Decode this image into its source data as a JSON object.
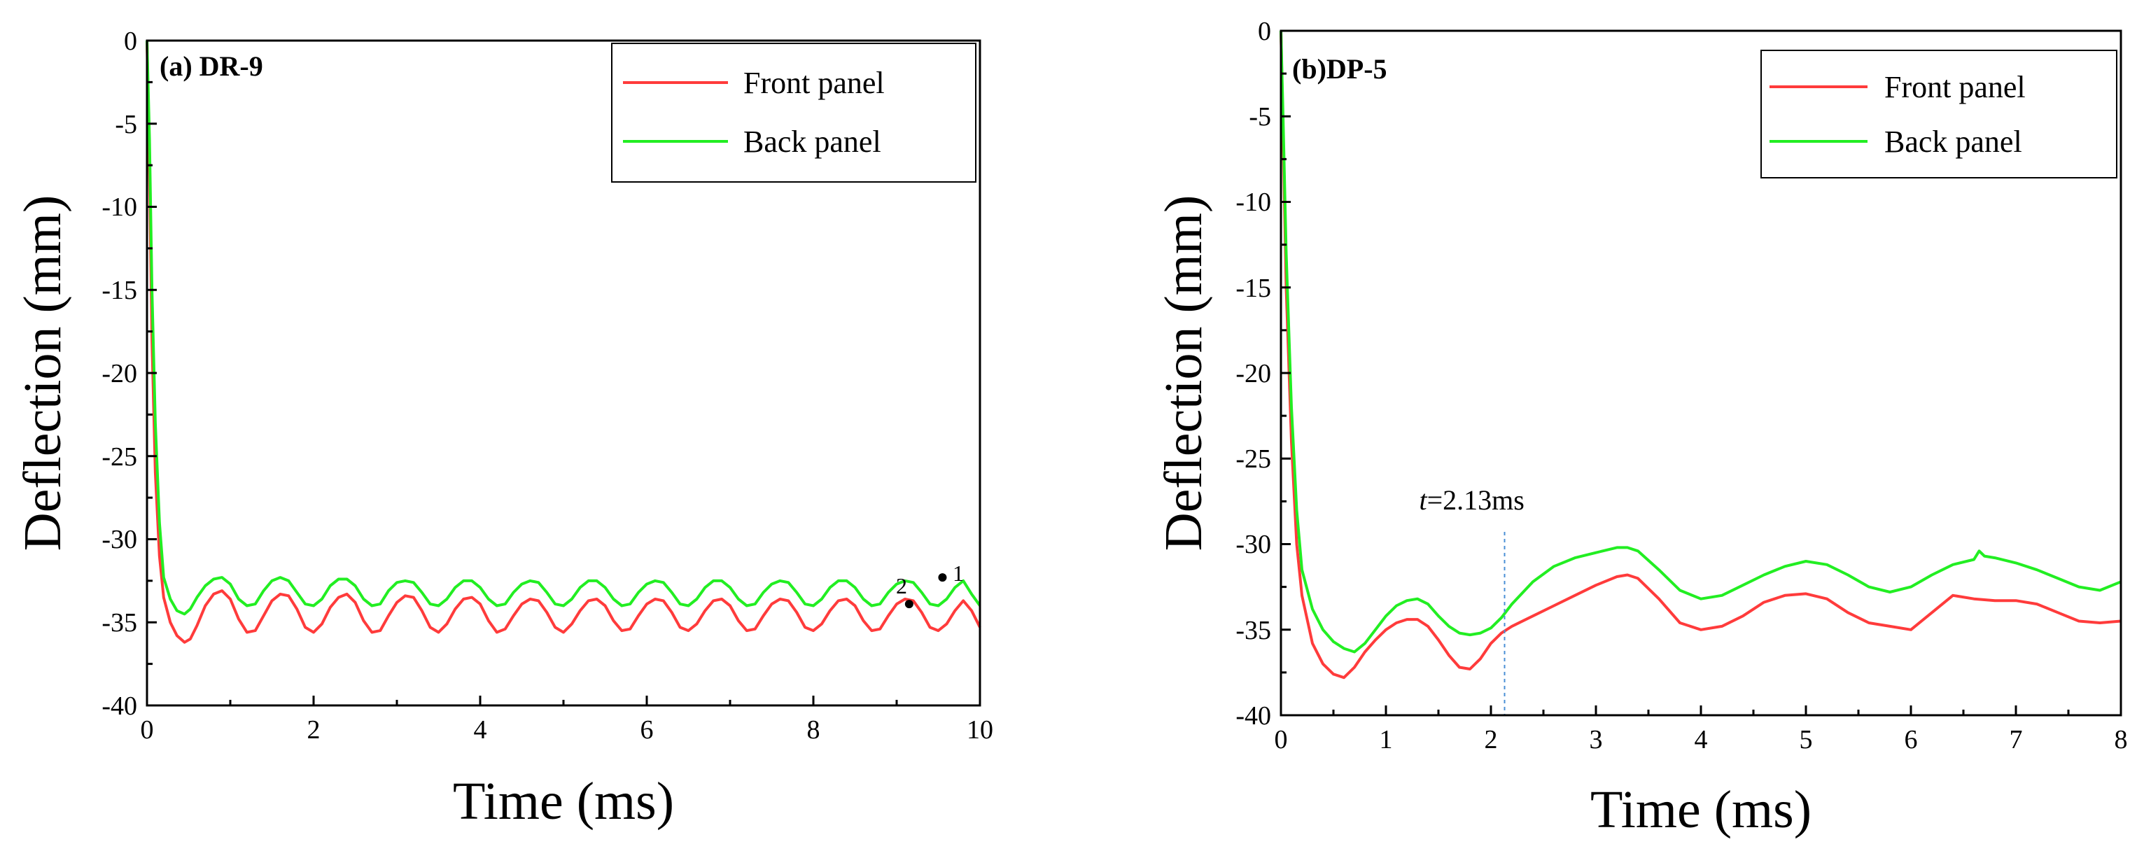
{
  "chart_data": [
    {
      "type": "line",
      "title": "(a) DR-9",
      "xlabel": "Time (ms)",
      "ylabel": "Deflection (mm)",
      "xlim": [
        0,
        10
      ],
      "ylim": [
        -40,
        0
      ],
      "xticks": [
        0,
        2,
        4,
        6,
        8,
        10
      ],
      "yticks": [
        0,
        -5,
        -10,
        -15,
        -20,
        -25,
        -30,
        -35,
        -40
      ],
      "legend_position": "top-right",
      "series": [
        {
          "name": "Front panel",
          "color": "#ff3b3b",
          "x": [
            0,
            0.03,
            0.06,
            0.1,
            0.15,
            0.2,
            0.28,
            0.36,
            0.45,
            0.52,
            0.6,
            0.7,
            0.8,
            0.9,
            1.0,
            1.1,
            1.2,
            1.3,
            1.4,
            1.5,
            1.6,
            1.7,
            1.8,
            1.9,
            2.0,
            2.1,
            2.2,
            2.3,
            2.4,
            2.5,
            2.6,
            2.7,
            2.8,
            2.9,
            3.0,
            3.1,
            3.2,
            3.3,
            3.4,
            3.5,
            3.6,
            3.7,
            3.8,
            3.9,
            4.0,
            4.1,
            4.2,
            4.3,
            4.4,
            4.5,
            4.6,
            4.7,
            4.8,
            4.9,
            5.0,
            5.1,
            5.2,
            5.3,
            5.4,
            5.5,
            5.6,
            5.7,
            5.8,
            5.9,
            6.0,
            6.1,
            6.2,
            6.3,
            6.4,
            6.5,
            6.6,
            6.7,
            6.8,
            6.9,
            7.0,
            7.1,
            7.2,
            7.3,
            7.4,
            7.5,
            7.6,
            7.7,
            7.8,
            7.9,
            8.0,
            8.1,
            8.2,
            8.3,
            8.4,
            8.5,
            8.6,
            8.7,
            8.8,
            8.9,
            9.0,
            9.1,
            9.2,
            9.3,
            9.4,
            9.5,
            9.6,
            9.7,
            9.8,
            9.9,
            10.0
          ],
          "y": [
            0,
            -8,
            -18,
            -26,
            -31,
            -33.5,
            -35,
            -35.8,
            -36.2,
            -36,
            -35.2,
            -34,
            -33.3,
            -33.1,
            -33.6,
            -34.8,
            -35.6,
            -35.5,
            -34.6,
            -33.7,
            -33.3,
            -33.4,
            -34.2,
            -35.3,
            -35.6,
            -35.1,
            -34.1,
            -33.5,
            -33.3,
            -33.8,
            -34.9,
            -35.6,
            -35.5,
            -34.6,
            -33.8,
            -33.4,
            -33.5,
            -34.3,
            -35.3,
            -35.6,
            -35.1,
            -34.2,
            -33.6,
            -33.5,
            -33.9,
            -34.9,
            -35.6,
            -35.4,
            -34.6,
            -33.9,
            -33.6,
            -33.7,
            -34.4,
            -35.3,
            -35.6,
            -35.1,
            -34.3,
            -33.7,
            -33.6,
            -34.0,
            -34.9,
            -35.5,
            -35.4,
            -34.6,
            -33.9,
            -33.6,
            -33.7,
            -34.4,
            -35.3,
            -35.5,
            -35.1,
            -34.3,
            -33.7,
            -33.6,
            -34.0,
            -34.9,
            -35.5,
            -35.4,
            -34.6,
            -33.9,
            -33.6,
            -33.7,
            -34.4,
            -35.3,
            -35.5,
            -35.1,
            -34.3,
            -33.7,
            -33.6,
            -34.0,
            -34.9,
            -35.5,
            -35.4,
            -34.6,
            -33.9,
            -33.6,
            -33.7,
            -34.4,
            -35.3,
            -35.5,
            -35.1,
            -34.3,
            -33.7,
            -34.3,
            -35.3
          ]
        },
        {
          "name": "Back panel",
          "color": "#22ee22",
          "x": [
            0,
            0.03,
            0.06,
            0.1,
            0.15,
            0.2,
            0.28,
            0.36,
            0.45,
            0.52,
            0.6,
            0.7,
            0.8,
            0.9,
            1.0,
            1.1,
            1.2,
            1.3,
            1.4,
            1.5,
            1.6,
            1.7,
            1.8,
            1.9,
            2.0,
            2.1,
            2.2,
            2.3,
            2.4,
            2.5,
            2.6,
            2.7,
            2.8,
            2.9,
            3.0,
            3.1,
            3.2,
            3.3,
            3.4,
            3.5,
            3.6,
            3.7,
            3.8,
            3.9,
            4.0,
            4.1,
            4.2,
            4.3,
            4.4,
            4.5,
            4.6,
            4.7,
            4.8,
            4.9,
            5.0,
            5.1,
            5.2,
            5.3,
            5.4,
            5.5,
            5.6,
            5.7,
            5.8,
            5.9,
            6.0,
            6.1,
            6.2,
            6.3,
            6.4,
            6.5,
            6.6,
            6.7,
            6.8,
            6.9,
            7.0,
            7.1,
            7.2,
            7.3,
            7.4,
            7.5,
            7.6,
            7.7,
            7.8,
            7.9,
            8.0,
            8.1,
            8.2,
            8.3,
            8.4,
            8.5,
            8.6,
            8.7,
            8.8,
            8.9,
            9.0,
            9.1,
            9.2,
            9.3,
            9.4,
            9.5,
            9.6,
            9.7,
            9.8,
            9.9,
            10.0
          ],
          "y": [
            0,
            -6,
            -15,
            -23,
            -29,
            -32.3,
            -33.6,
            -34.3,
            -34.5,
            -34.2,
            -33.5,
            -32.8,
            -32.4,
            -32.3,
            -32.7,
            -33.6,
            -34.0,
            -33.9,
            -33.1,
            -32.5,
            -32.3,
            -32.5,
            -33.2,
            -33.9,
            -34.0,
            -33.6,
            -32.8,
            -32.4,
            -32.4,
            -32.8,
            -33.6,
            -34.0,
            -33.9,
            -33.1,
            -32.6,
            -32.5,
            -32.6,
            -33.2,
            -33.9,
            -34.0,
            -33.6,
            -32.9,
            -32.5,
            -32.5,
            -32.9,
            -33.6,
            -34.0,
            -33.9,
            -33.2,
            -32.7,
            -32.5,
            -32.6,
            -33.2,
            -33.9,
            -34.0,
            -33.6,
            -32.9,
            -32.5,
            -32.5,
            -32.9,
            -33.6,
            -34.0,
            -33.9,
            -33.2,
            -32.7,
            -32.5,
            -32.6,
            -33.2,
            -33.9,
            -34.0,
            -33.6,
            -32.9,
            -32.5,
            -32.5,
            -32.9,
            -33.6,
            -34.0,
            -33.9,
            -33.2,
            -32.7,
            -32.5,
            -32.6,
            -33.2,
            -33.9,
            -34.0,
            -33.6,
            -32.9,
            -32.5,
            -32.5,
            -32.9,
            -33.6,
            -34.0,
            -33.9,
            -33.2,
            -32.7,
            -32.5,
            -32.6,
            -33.2,
            -33.9,
            -34.0,
            -33.6,
            -32.9,
            -32.5,
            -33.3,
            -34.0
          ]
        }
      ],
      "annotations": [
        {
          "label": "1",
          "x": 9.55,
          "y": -32.3
        },
        {
          "label": "2",
          "x": 9.15,
          "y": -33.9
        }
      ]
    },
    {
      "type": "line",
      "title": "(b)DP-5",
      "xlabel": "Time (ms)",
      "ylabel": "Deflection (mm)",
      "xlim": [
        0,
        8
      ],
      "ylim": [
        -40,
        0
      ],
      "xticks": [
        0,
        1,
        2,
        3,
        4,
        5,
        6,
        7,
        8
      ],
      "yticks": [
        0,
        -5,
        -10,
        -15,
        -20,
        -25,
        -30,
        -35,
        -40
      ],
      "legend_position": "top-right",
      "series": [
        {
          "name": "Front panel",
          "color": "#ff3b3b",
          "x": [
            0,
            0.02,
            0.05,
            0.1,
            0.15,
            0.2,
            0.3,
            0.4,
            0.5,
            0.6,
            0.7,
            0.8,
            0.9,
            1.0,
            1.1,
            1.2,
            1.3,
            1.4,
            1.5,
            1.6,
            1.7,
            1.8,
            1.9,
            2.0,
            2.1,
            2.2,
            2.4,
            2.6,
            2.8,
            3.0,
            3.2,
            3.3,
            3.4,
            3.6,
            3.8,
            4.0,
            4.2,
            4.4,
            4.6,
            4.8,
            5.0,
            5.2,
            5.4,
            5.6,
            5.8,
            6.0,
            6.2,
            6.4,
            6.6,
            6.8,
            7.0,
            7.2,
            7.4,
            7.6,
            7.8,
            8.0
          ],
          "y": [
            0,
            -6,
            -15,
            -24,
            -30,
            -33,
            -35.8,
            -37.0,
            -37.6,
            -37.8,
            -37.2,
            -36.3,
            -35.6,
            -35.0,
            -34.6,
            -34.4,
            -34.4,
            -34.8,
            -35.6,
            -36.5,
            -37.2,
            -37.3,
            -36.7,
            -35.8,
            -35.2,
            -34.8,
            -34.2,
            -33.6,
            -33.0,
            -32.4,
            -31.9,
            -31.8,
            -32.0,
            -33.2,
            -34.6,
            -35.0,
            -34.8,
            -34.2,
            -33.4,
            -33.0,
            -32.9,
            -33.2,
            -34.0,
            -34.6,
            -34.8,
            -35.0,
            -34.0,
            -33.0,
            -33.2,
            -33.3,
            -33.3,
            -33.5,
            -34.0,
            -34.5,
            -34.6,
            -34.5
          ]
        },
        {
          "name": "Back panel",
          "color": "#22ee22",
          "x": [
            0,
            0.02,
            0.05,
            0.1,
            0.15,
            0.2,
            0.3,
            0.4,
            0.5,
            0.6,
            0.7,
            0.8,
            0.9,
            1.0,
            1.1,
            1.2,
            1.3,
            1.4,
            1.5,
            1.6,
            1.7,
            1.8,
            1.9,
            2.0,
            2.1,
            2.2,
            2.4,
            2.6,
            2.8,
            3.0,
            3.2,
            3.3,
            3.4,
            3.6,
            3.8,
            4.0,
            4.2,
            4.4,
            4.6,
            4.8,
            5.0,
            5.2,
            5.4,
            5.6,
            5.8,
            6.0,
            6.2,
            6.4,
            6.6,
            6.65,
            6.7,
            6.8,
            7.0,
            7.2,
            7.4,
            7.6,
            7.8,
            8.0
          ],
          "y": [
            0,
            -5,
            -13,
            -22,
            -28,
            -31.5,
            -33.8,
            -35.0,
            -35.7,
            -36.1,
            -36.3,
            -35.8,
            -35.0,
            -34.2,
            -33.6,
            -33.3,
            -33.2,
            -33.5,
            -34.2,
            -34.8,
            -35.2,
            -35.3,
            -35.2,
            -34.9,
            -34.3,
            -33.5,
            -32.2,
            -31.3,
            -30.8,
            -30.5,
            -30.2,
            -30.2,
            -30.4,
            -31.5,
            -32.7,
            -33.2,
            -33.0,
            -32.4,
            -31.8,
            -31.3,
            -31.0,
            -31.2,
            -31.8,
            -32.5,
            -32.8,
            -32.5,
            -31.8,
            -31.2,
            -30.9,
            -30.4,
            -30.7,
            -30.8,
            -31.1,
            -31.5,
            -32.0,
            -32.5,
            -32.7,
            -32.2
          ]
        }
      ],
      "annotations": [
        {
          "label_prefix": "t",
          "label_text": "=2.13ms",
          "x": 2.13
        }
      ]
    }
  ]
}
